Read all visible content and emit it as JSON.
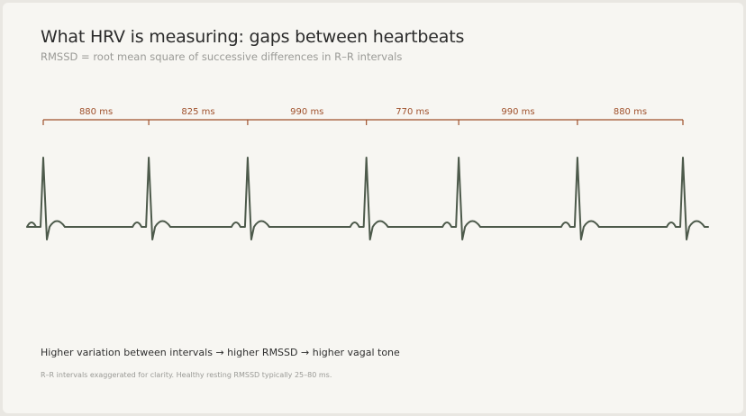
{
  "header": {
    "title": "What HRV is measuring: gaps between heartbeats",
    "subtitle": "RMSSD = root mean square of successive differences in R–R intervals"
  },
  "diagram": {
    "interval_unit": "ms",
    "rr_intervals": [
      {
        "label": "880 ms",
        "value": 880
      },
      {
        "label": "825 ms",
        "value": 825
      },
      {
        "label": "990 ms",
        "value": 990
      },
      {
        "label": "770 ms",
        "value": 770
      },
      {
        "label": "990 ms",
        "value": 990
      },
      {
        "label": "880 ms",
        "value": 880
      }
    ],
    "beat_count": 7,
    "colors": {
      "ecg_trace": "#4d5a4b",
      "interval_bracket": "#a0522d",
      "interval_label": "#a0522d"
    }
  },
  "summary": {
    "part1": "Higher variation between intervals",
    "arrow1": "→",
    "part2": "higher RMSSD",
    "arrow2": "→",
    "part3": "higher vagal tone"
  },
  "footnote": "R–R intervals exaggerated for clarity. Healthy resting RMSSD typically 25–80 ms."
}
